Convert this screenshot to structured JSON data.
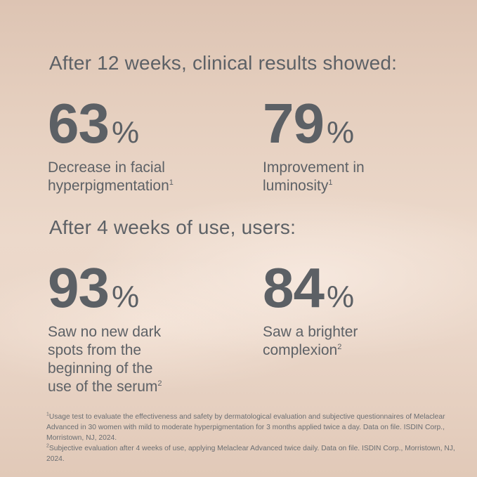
{
  "headings": {
    "clinical": "After 12 weeks, clinical results showed:",
    "users": "After 4 weeks of use, users:"
  },
  "stats": [
    {
      "value": "63",
      "unit": "%",
      "line1": "Decrease in facial",
      "line2": "hyperpigmentation",
      "ref": "1"
    },
    {
      "value": "79",
      "unit": "%",
      "line1": "Improvement in",
      "line2": "luminosity",
      "ref": "1"
    },
    {
      "value": "93",
      "unit": "%",
      "line1": "Saw no new dark",
      "line2": "spots from the",
      "line3": "beginning of the",
      "line4": "use of the serum",
      "ref": "2"
    },
    {
      "value": "84",
      "unit": "%",
      "line1": "Saw a brighter",
      "line2": "complexion",
      "ref": "2"
    }
  ],
  "footnotes": [
    {
      "ref": "1",
      "text": "Usage test to evaluate the effectiveness and safety by dermatological evaluation and subjective questionnaires of Melaclear Advanced in 30 women with mild to moderate hyperpigmentation for 3 months applied twice a day. Data on file. ISDIN Corp., Morristown, NJ, 2024."
    },
    {
      "ref": "2",
      "text": "Subjective evaluation after 4 weeks of use, applying Melaclear Advanced twice daily. Data on file. ISDIN Corp., Morristown, NJ, 2024."
    }
  ],
  "colors": {
    "text": "#5c6065",
    "background_top": "#ddc4b3",
    "background_mid": "#ecd9cb"
  }
}
